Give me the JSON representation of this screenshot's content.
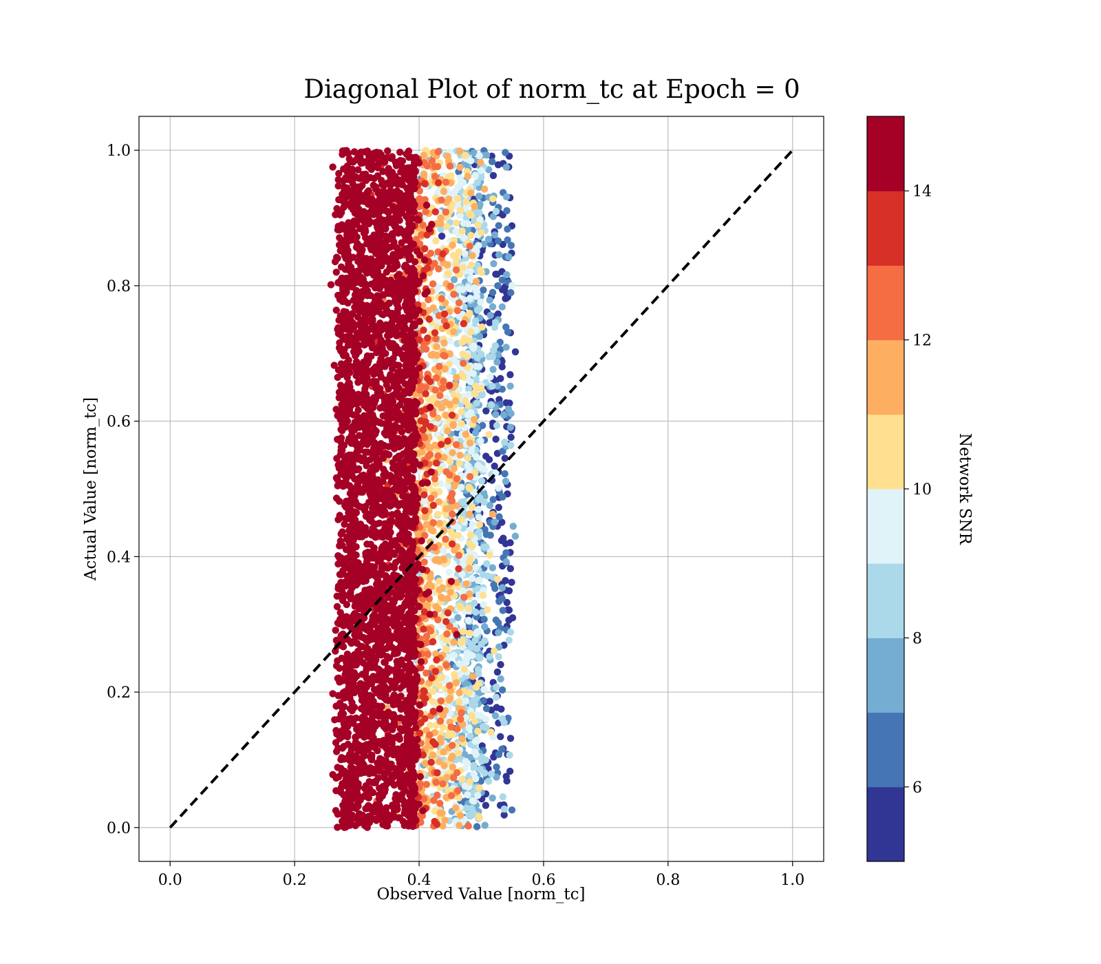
{
  "chart_data": {
    "type": "scatter",
    "title": "Diagonal Plot of norm_tc at Epoch = 0",
    "xlabel": "Observed Value [norm_tc]",
    "ylabel": "Actual Value [norm_tc]",
    "xlim": [
      -0.05,
      1.05
    ],
    "ylim": [
      -0.05,
      1.05
    ],
    "xticks": [
      "0.0",
      "0.2",
      "0.4",
      "0.6",
      "0.8",
      "1.0"
    ],
    "yticks": [
      "0.0",
      "0.2",
      "0.4",
      "0.6",
      "0.8",
      "1.0"
    ],
    "grid": true,
    "reference_line": {
      "x": [
        0,
        1
      ],
      "y": [
        0,
        1
      ],
      "style": "dashed",
      "color": "#000000"
    },
    "point_distribution": {
      "x_range": [
        0.25,
        0.57
      ],
      "y_range": [
        0.0,
        1.0
      ],
      "dense_core_x_range": [
        0.28,
        0.4
      ],
      "dense_core_color": "#a50026",
      "high_snr_near_x": 0.33,
      "low_snr_near_x": 0.52
    },
    "colorbar": {
      "label": "Network SNR",
      "range": [
        5,
        15
      ],
      "ticks": [
        "6",
        "8",
        "10",
        "12",
        "14"
      ],
      "tick_values": [
        6,
        8,
        10,
        12,
        14
      ],
      "levels": [
        {
          "from": 5,
          "to": 6,
          "color": "#313695"
        },
        {
          "from": 6,
          "to": 7,
          "color": "#4575b4"
        },
        {
          "from": 7,
          "to": 8,
          "color": "#74add1"
        },
        {
          "from": 8,
          "to": 9,
          "color": "#abd9e9"
        },
        {
          "from": 9,
          "to": 10,
          "color": "#e0f3f8"
        },
        {
          "from": 10,
          "to": 11,
          "color": "#fee090"
        },
        {
          "from": 11,
          "to": 12,
          "color": "#fdae61"
        },
        {
          "from": 12,
          "to": 13,
          "color": "#f46d43"
        },
        {
          "from": 13,
          "to": 14,
          "color": "#d73027"
        },
        {
          "from": 14,
          "to": 15,
          "color": "#a50026"
        }
      ]
    },
    "colors": {
      "grid": "#b0b0b0",
      "axes": "#000000",
      "background": "#ffffff"
    }
  }
}
